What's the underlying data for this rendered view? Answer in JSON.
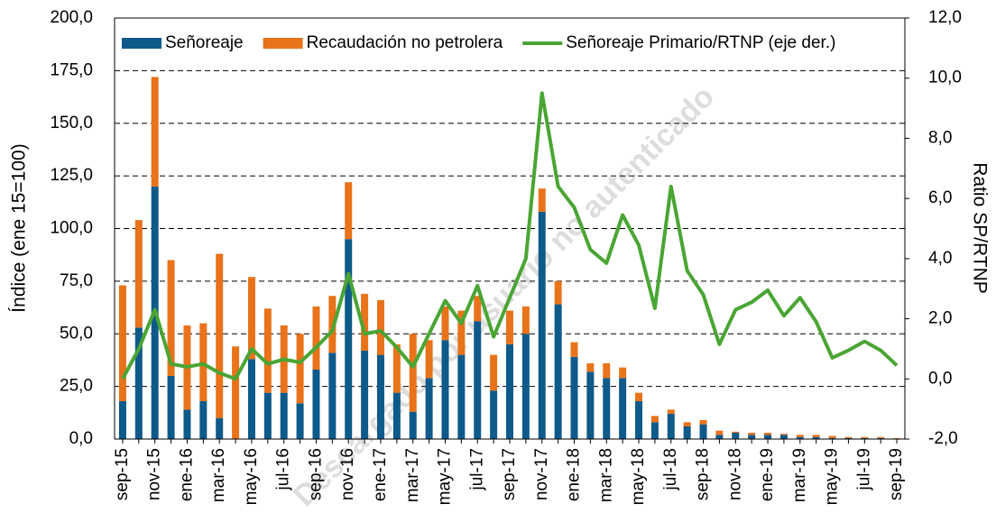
{
  "chart_data": {
    "type": "bar",
    "stacked": true,
    "categories": [
      "sep-15",
      null,
      "nov-15",
      null,
      "ene-16",
      null,
      "mar-16",
      null,
      "may-16",
      null,
      "jul-16",
      null,
      "sep-16",
      null,
      "nov-16",
      null,
      "ene-17",
      null,
      "mar-17",
      null,
      "may-17",
      null,
      "jul-17",
      null,
      "sep-17",
      null,
      "nov-17",
      null,
      "ene-18",
      null,
      "mar-18",
      null,
      "may-18",
      null,
      "jul-18",
      null,
      "sep-18",
      null,
      "nov-18",
      null,
      "ene-19",
      null,
      "mar-19",
      null,
      "may-19",
      null,
      "jul-19",
      null,
      "sep-19"
    ],
    "series": [
      {
        "name": "Señoreaje",
        "color": "#0e5a8a",
        "values": [
          18,
          53,
          120,
          30,
          14,
          18,
          10,
          0,
          38,
          22,
          22,
          17,
          33,
          41,
          95,
          42,
          40,
          22,
          13,
          29,
          47,
          40,
          56,
          23,
          45,
          50,
          108,
          64,
          39,
          32,
          29,
          29,
          18,
          8,
          12,
          6,
          7,
          2,
          3,
          2,
          2,
          2,
          1,
          1,
          0.5,
          0.5,
          0.5,
          0.5,
          0.3
        ]
      },
      {
        "name": "Recaudación no petrolera",
        "color": "#e8731a",
        "values": [
          55,
          51,
          52,
          55,
          40,
          37,
          78,
          44,
          39,
          40,
          32,
          33,
          30,
          27,
          27,
          27,
          26,
          23,
          37,
          18,
          16,
          21,
          12,
          17,
          16,
          13,
          11,
          11,
          7,
          4,
          7,
          5,
          4,
          3,
          2,
          2,
          2,
          2,
          0.5,
          1,
          1,
          0.5,
          1,
          1,
          1,
          0.5,
          0.5,
          0.5,
          0.2
        ]
      },
      {
        "name": "Señoreaje Primario/RTNP (eje der.)",
        "color": "#4aa534",
        "axis": "y2",
        "type": "line",
        "values": [
          0.0,
          1.0,
          2.3,
          0.5,
          0.4,
          0.5,
          0.2,
          0.0,
          1.0,
          0.5,
          0.65,
          0.55,
          1.05,
          1.6,
          3.5,
          1.5,
          1.6,
          1.05,
          0.4,
          1.5,
          2.6,
          1.85,
          3.1,
          1.4,
          2.7,
          4.0,
          9.5,
          6.4,
          5.7,
          4.3,
          3.85,
          5.45,
          4.45,
          2.35,
          6.4,
          3.6,
          2.8,
          1.15,
          2.3,
          2.55,
          2.95,
          2.1,
          2.7,
          1.9,
          0.7,
          0.95,
          1.25,
          0.95,
          0.45
        ]
      }
    ],
    "ylabel": "Índice (ene 15=100)",
    "y2label": "Ratio SP/RTNP",
    "ylim": [
      0,
      200
    ],
    "yticks": [
      {
        "value": 0,
        "label": "0,0"
      },
      {
        "value": 25,
        "label": "25,0"
      },
      {
        "value": 50,
        "label": "50,0"
      },
      {
        "value": 75,
        "label": "75,0"
      },
      {
        "value": 100,
        "label": "100,0"
      },
      {
        "value": 125,
        "label": "125,0"
      },
      {
        "value": 150,
        "label": "150,0"
      },
      {
        "value": 175,
        "label": "175,0"
      },
      {
        "value": 200,
        "label": "200,0"
      }
    ],
    "y2lim": [
      -2,
      12
    ],
    "y2ticks": [
      {
        "value": -2,
        "label": "-2,0"
      },
      {
        "value": 0,
        "label": "0,0"
      },
      {
        "value": 2,
        "label": "2,0"
      },
      {
        "value": 4,
        "label": "4,0"
      },
      {
        "value": 6,
        "label": "6,0"
      },
      {
        "value": 8,
        "label": "8,0"
      },
      {
        "value": 10,
        "label": "10,0"
      },
      {
        "value": 12,
        "label": "12,0"
      }
    ],
    "grid": true,
    "legend": "top",
    "annotation": "Descargado por usuario no autenticado"
  }
}
